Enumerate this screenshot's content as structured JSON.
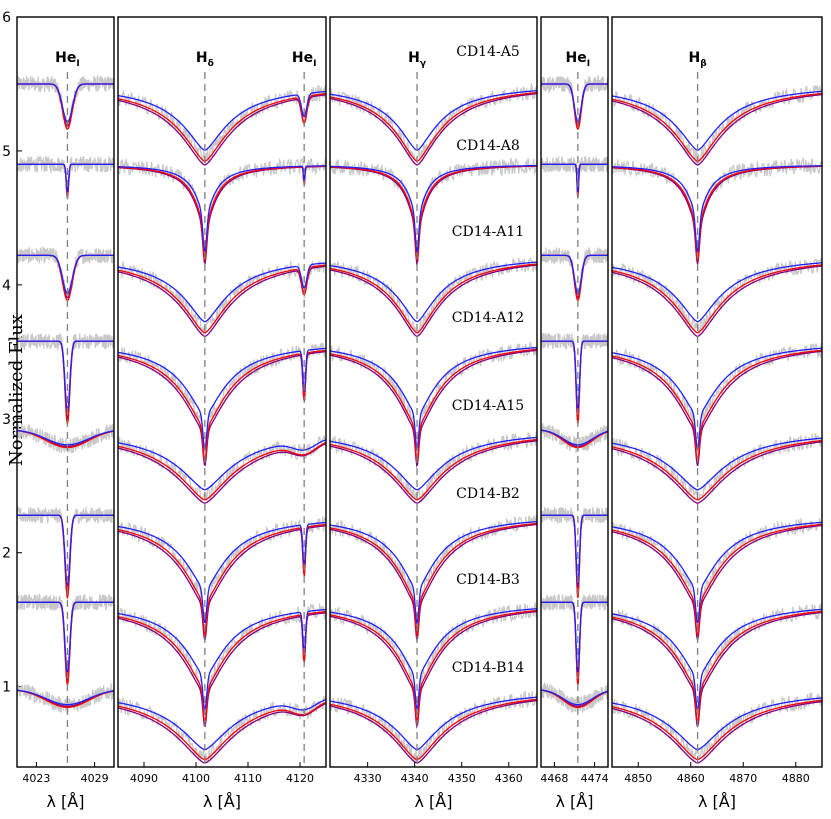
{
  "chart_data": {
    "type": "line",
    "ylabel": "Normalized Flux",
    "ylim": [
      0.4,
      6.0
    ],
    "yticks": [
      "1",
      "2",
      "3",
      "4",
      "5",
      "6"
    ],
    "colors": {
      "observed": "#c8c8c8",
      "model_mid": "#ff0000",
      "model_hot": "#2020ff",
      "model_cool": "#800080",
      "marker": "#808080"
    },
    "stars": [
      {
        "name": "CD14-A5",
        "offset": 5.5,
        "type": "broad",
        "scale": 0.5
      },
      {
        "name": "CD14-A8",
        "offset": 4.9,
        "type": "narrow",
        "scale": 0.42
      },
      {
        "name": "CD14-A11",
        "offset": 4.22,
        "type": "broad",
        "scale": 0.58
      },
      {
        "name": "CD14-A12",
        "offset": 3.58,
        "type": "deep",
        "scale": 0.56
      },
      {
        "name": "CD14-A15",
        "offset": 2.92,
        "type": "wide",
        "scale": 0.48
      },
      {
        "name": "CD14-B2",
        "offset": 2.28,
        "type": "deep",
        "scale": 0.62
      },
      {
        "name": "CD14-B3",
        "offset": 1.63,
        "type": "deep",
        "scale": 0.66
      },
      {
        "name": "CD14-B14",
        "offset": 0.98,
        "type": "wide",
        "scale": 0.46
      }
    ],
    "panels": [
      {
        "xlim": [
          4021,
          4031
        ],
        "xticks": [
          4023,
          4029
        ],
        "xlabel": "λ [Å]",
        "lines": [
          {
            "center": 4026.2,
            "label": "He",
            "sub": "I",
            "kind": "he"
          }
        ]
      },
      {
        "xlim": [
          4085,
          4125
        ],
        "xticks": [
          4090,
          4100,
          4110,
          4120
        ],
        "xlabel": "λ [Å]",
        "lines": [
          {
            "center": 4101.7,
            "label": "H",
            "sub": "δ",
            "kind": "h"
          },
          {
            "center": 4120.8,
            "label": "He",
            "sub": "I",
            "kind": "he"
          }
        ]
      },
      {
        "xlim": [
          4322,
          4366
        ],
        "xticks": [
          4330,
          4340,
          4350,
          4360
        ],
        "xlabel": "λ [Å]",
        "lines": [
          {
            "center": 4340.5,
            "label": "H",
            "sub": "γ",
            "kind": "h"
          }
        ]
      },
      {
        "xlim": [
          4466,
          4476
        ],
        "xticks": [
          4468,
          4474
        ],
        "xlabel": "λ [Å]",
        "lines": [
          {
            "center": 4471.5,
            "label": "He",
            "sub": "I",
            "kind": "he"
          }
        ]
      },
      {
        "xlim": [
          4845,
          4885
        ],
        "xticks": [
          4850,
          4860,
          4870,
          4880
        ],
        "xlabel": "λ [Å]",
        "lines": [
          {
            "center": 4861.3,
            "label": "H",
            "sub": "β",
            "kind": "h"
          }
        ]
      }
    ]
  }
}
